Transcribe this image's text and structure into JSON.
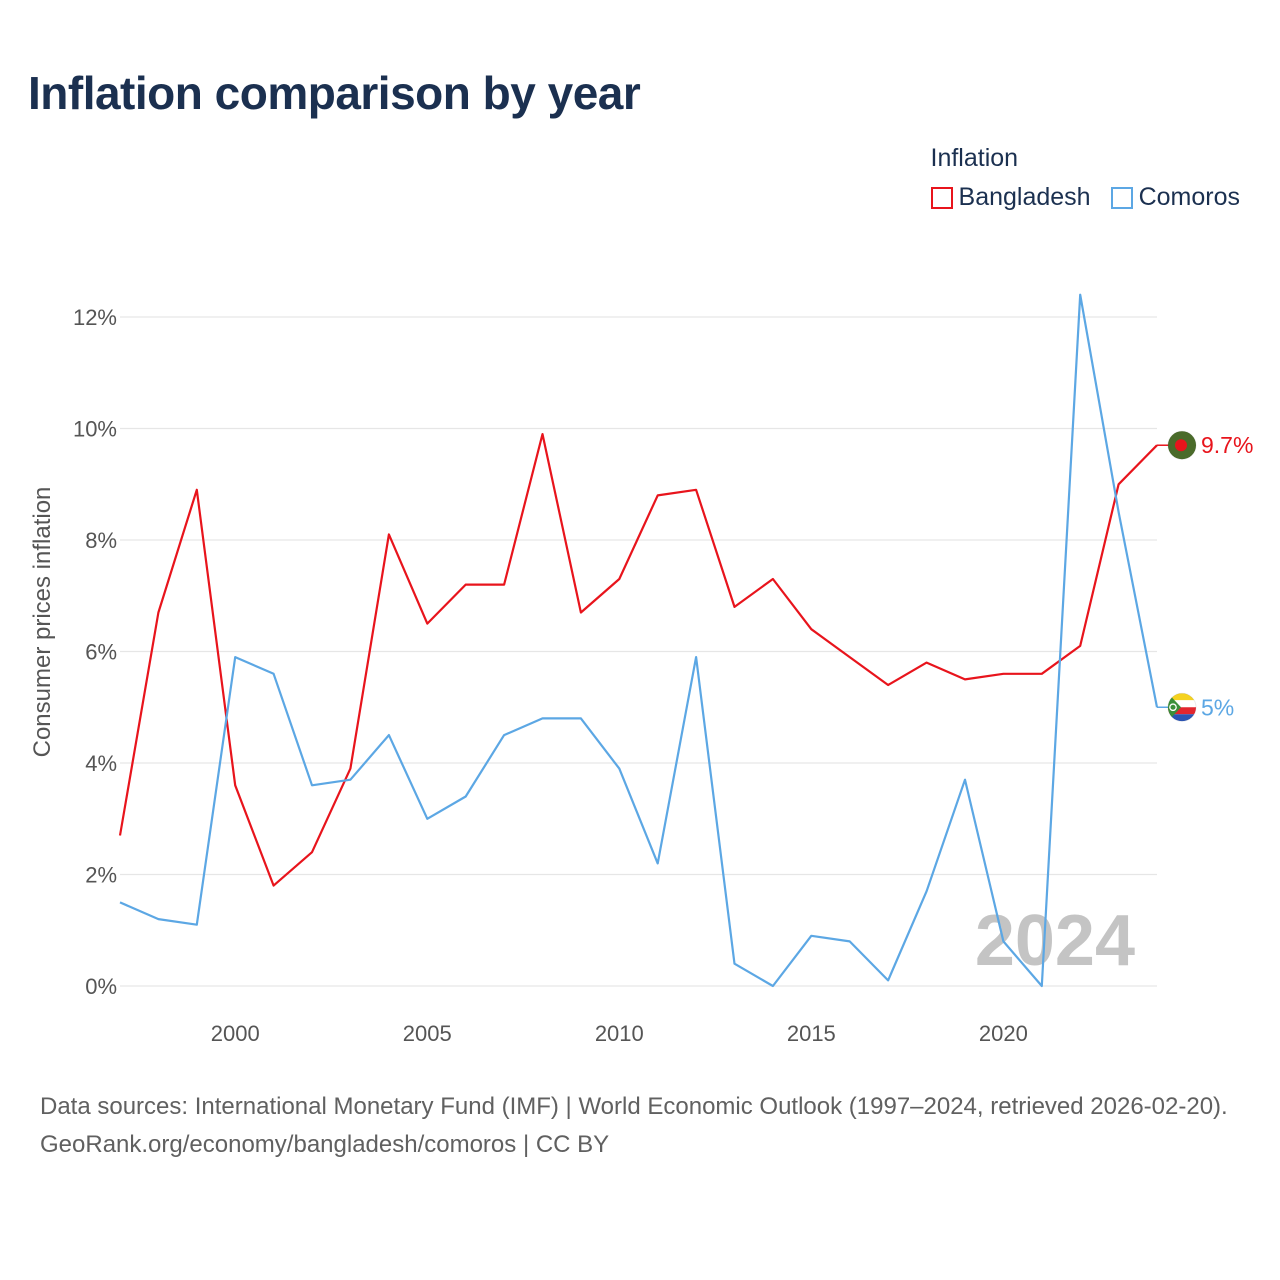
{
  "title": "Inflation comparison by year",
  "legend": {
    "title": "Inflation",
    "items": [
      {
        "label": "Bangladesh",
        "color": "#e8141c"
      },
      {
        "label": "Comoros",
        "color": "#5ca7e4"
      }
    ]
  },
  "watermark_year": "2024",
  "footer": {
    "sources": "Data sources: International Monetary Fund (IMF) | World Economic Outlook (1997–2024, retrieved 2026-02-20).",
    "credit": "GeoRank.org/economy/bangladesh/comoros | CC BY"
  },
  "chart_data": {
    "type": "line",
    "title": "Inflation comparison by year",
    "xlabel": "",
    "ylabel": "Consumer prices inflation",
    "x": [
      1997,
      1998,
      1999,
      2000,
      2001,
      2002,
      2003,
      2004,
      2005,
      2006,
      2007,
      2008,
      2009,
      2010,
      2011,
      2012,
      2013,
      2014,
      2015,
      2016,
      2017,
      2018,
      2019,
      2020,
      2021,
      2022,
      2023,
      2024
    ],
    "xlim": [
      1997,
      2024
    ],
    "ylim": [
      0,
      12.5
    ],
    "xticks": [
      2000,
      2005,
      2010,
      2015,
      2020
    ],
    "yticks": [
      0,
      2,
      4,
      6,
      8,
      10,
      12
    ],
    "yticks_labels": [
      "0%",
      "2%",
      "4%",
      "6%",
      "8%",
      "10%",
      "12%"
    ],
    "grid": true,
    "legend_position": "top-right",
    "series": [
      {
        "name": "Bangladesh",
        "color": "#e8141c",
        "values": [
          2.7,
          6.7,
          8.9,
          3.6,
          1.8,
          2.4,
          3.9,
          8.1,
          6.5,
          7.2,
          7.2,
          9.9,
          6.7,
          7.3,
          8.8,
          8.9,
          6.8,
          7.3,
          6.4,
          5.9,
          5.4,
          5.8,
          5.5,
          5.6,
          5.6,
          6.1,
          9.0,
          9.7
        ],
        "end_label": "9.7%"
      },
      {
        "name": "Comoros",
        "color": "#5ca7e4",
        "values": [
          1.5,
          1.2,
          1.1,
          5.9,
          5.6,
          3.6,
          3.7,
          4.5,
          3.0,
          3.4,
          4.5,
          4.8,
          4.8,
          3.9,
          2.2,
          5.9,
          0.4,
          0.0,
          0.9,
          0.8,
          0.1,
          1.7,
          3.7,
          0.8,
          0.0,
          12.4,
          8.5,
          5.0
        ],
        "end_label": "5%"
      }
    ]
  }
}
